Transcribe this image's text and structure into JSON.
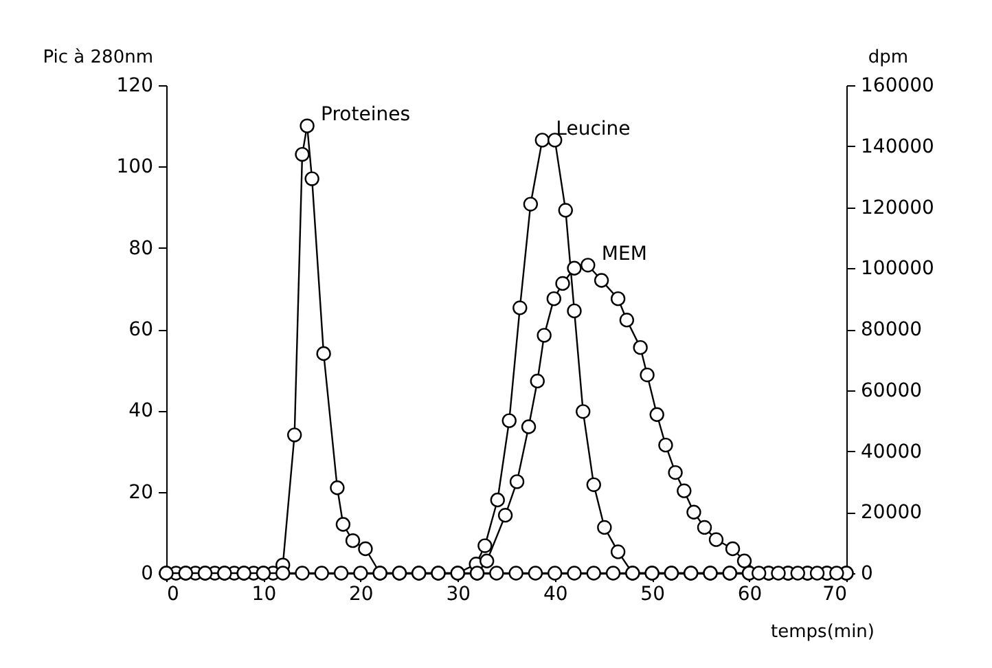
{
  "chart_data": {
    "type": "line",
    "xlabel": "temps(min)",
    "ylabel": "Pic à 280nm",
    "y2label": "dpm",
    "xlim": [
      0,
      70
    ],
    "xticks": [
      0,
      10,
      20,
      30,
      40,
      50,
      60,
      70
    ],
    "ylim": [
      0,
      120
    ],
    "yticks": [
      0,
      20,
      40,
      60,
      80,
      100,
      120
    ],
    "y2lim": [
      0,
      160000
    ],
    "y2ticks": [
      0,
      20000,
      40000,
      60000,
      80000,
      100000,
      120000,
      140000,
      160000
    ],
    "grid": false,
    "legend": false,
    "marker": "circle",
    "line_style": "solid",
    "series": [
      {
        "name": "Proteines",
        "color": "#000000",
        "x": [
          0,
          1,
          2,
          3,
          4,
          5,
          6,
          7,
          8,
          9,
          10,
          11,
          12,
          13.2,
          14,
          14.5,
          15,
          16.2,
          17.6,
          18.2,
          19.2,
          20.5,
          22,
          24,
          26,
          28,
          30,
          32,
          34,
          36,
          38,
          40,
          42,
          44,
          46,
          48,
          50,
          52,
          54,
          56,
          58,
          60,
          62,
          64,
          66,
          68,
          70
        ],
        "values": [
          0,
          0,
          0,
          0,
          0,
          0,
          0,
          0,
          0,
          0,
          0,
          0,
          2,
          34,
          103,
          110,
          97,
          54,
          21,
          12,
          8,
          6,
          0,
          0,
          0,
          0,
          0,
          0,
          0,
          0,
          0,
          0,
          0,
          0,
          0,
          0,
          0,
          0,
          0,
          0,
          0,
          0,
          0,
          0,
          0,
          0,
          0
        ]
      },
      {
        "name": "Leucine",
        "color": "#000000",
        "axis": "y2",
        "x": [
          0,
          2,
          4,
          6,
          8,
          10,
          12,
          14,
          16,
          18,
          20,
          22,
          24,
          26,
          28,
          30,
          31.9,
          32.8,
          34.1,
          35.3,
          36.4,
          37.5,
          38.7,
          40,
          41.1,
          42,
          42.9,
          44,
          45.1,
          46.5,
          48,
          50,
          52,
          54,
          56,
          58,
          60,
          62,
          64,
          66,
          68,
          70
        ],
        "values": [
          0,
          0,
          0,
          0,
          0,
          0,
          0,
          0,
          0,
          0,
          0,
          0,
          0,
          0,
          0,
          0,
          3000,
          9000,
          24000,
          50000,
          87000,
          121000,
          142000,
          142000,
          119000,
          86000,
          53000,
          29000,
          15000,
          7000,
          0,
          0,
          0,
          0,
          0,
          0,
          0,
          0,
          0,
          0,
          0,
          0
        ]
      },
      {
        "name": "MEM",
        "color": "#000000",
        "axis": "y2",
        "x": [
          32,
          33,
          34.9,
          36.1,
          37.3,
          38.2,
          38.9,
          39.9,
          40.8,
          42,
          43.4,
          44.8,
          46.5,
          47.4,
          48.8,
          49.5,
          50.5,
          51.4,
          52.4,
          53.3,
          54.3,
          55.4,
          56.6,
          58.3,
          59.5,
          61,
          63,
          65,
          67,
          69
        ],
        "values": [
          0,
          4000,
          19000,
          30000,
          48000,
          63000,
          78000,
          90000,
          95000,
          100000,
          101000,
          96000,
          90000,
          83000,
          74000,
          65000,
          52000,
          42000,
          33000,
          27000,
          20000,
          15000,
          11000,
          8000,
          4000,
          0,
          0,
          0,
          0,
          0
        ]
      }
    ]
  }
}
